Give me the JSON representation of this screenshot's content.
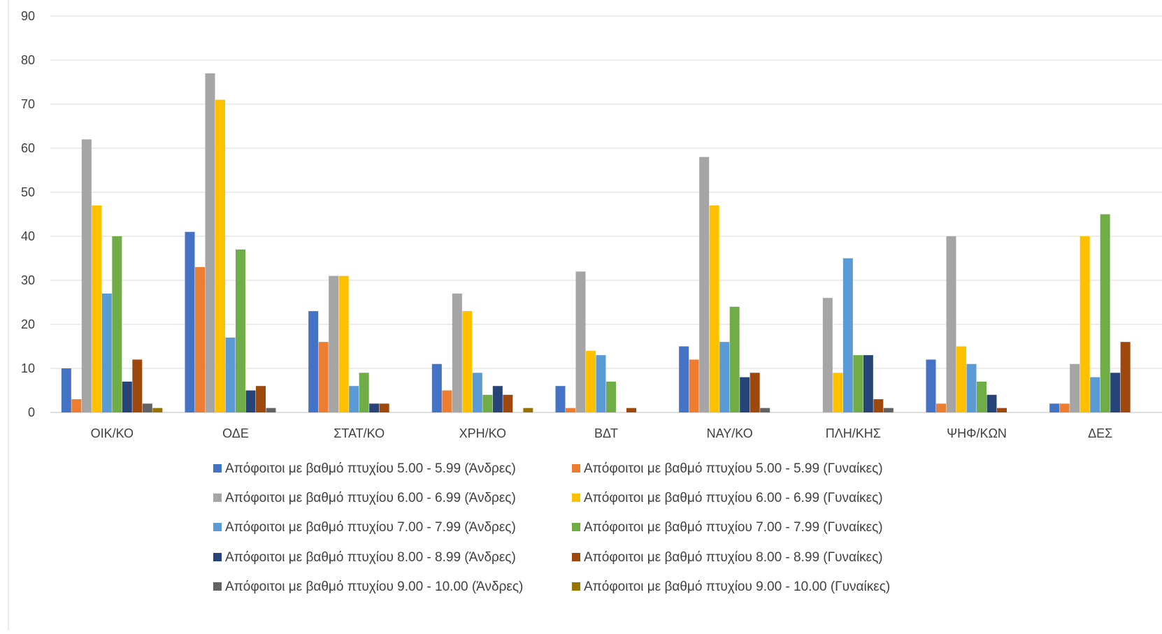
{
  "chart_data": {
    "type": "bar",
    "title": "",
    "xlabel": "",
    "ylabel": "",
    "ylim": [
      0,
      90
    ],
    "yticks": [
      0,
      10,
      20,
      30,
      40,
      50,
      60,
      70,
      80,
      90
    ],
    "grid": true,
    "legend_position": "bottom",
    "categories": [
      "ΟΙΚ/ΚΟ",
      "ΟΔΕ",
      "ΣΤΑΤ/ΚΟ",
      "ΧΡΗ/ΚΟ",
      "ΒΔΤ",
      "ΝΑΥ/ΚΟ",
      "ΠΛΗ/ΚΗΣ",
      "ΨΗΦ/ΚΩΝ",
      "ΔΕΣ"
    ],
    "series": [
      {
        "name": "Απόφοιτοι με βαθμό πτυχίου 5.00 - 5.99 (Άνδρες)",
        "color": "#4472C4",
        "values": [
          10,
          41,
          23,
          11,
          6,
          15,
          0,
          12,
          2
        ]
      },
      {
        "name": "Απόφοιτοι με βαθμό πτυχίου 5.00 - 5.99 (Γυναίκες)",
        "color": "#ED7D31",
        "values": [
          3,
          33,
          16,
          5,
          1,
          12,
          0,
          2,
          2
        ]
      },
      {
        "name": "Απόφοιτοι με βαθμό πτυχίου 6.00 - 6.99 (Άνδρες)",
        "color": "#A5A5A5",
        "values": [
          62,
          77,
          31,
          27,
          32,
          58,
          26,
          40,
          11
        ]
      },
      {
        "name": "Απόφοιτοι με βαθμό πτυχίου 6.00 - 6.99 (Γυναίκες)",
        "color": "#FFC000",
        "values": [
          47,
          71,
          31,
          23,
          14,
          47,
          9,
          15,
          40
        ]
      },
      {
        "name": "Απόφοιτοι με βαθμό πτυχίου 7.00 - 7.99 (Άνδρες)",
        "color": "#5B9BD5",
        "values": [
          27,
          17,
          6,
          9,
          13,
          16,
          35,
          11,
          8
        ]
      },
      {
        "name": "Απόφοιτοι με βαθμό πτυχίου 7.00 - 7.99 (Γυναίκες)",
        "color": "#70AD47",
        "values": [
          40,
          37,
          9,
          4,
          7,
          24,
          13,
          7,
          45
        ]
      },
      {
        "name": "Απόφοιτοι με βαθμό πτυχίου 8.00 - 8.99 (Άνδρες)",
        "color": "#264478",
        "values": [
          7,
          5,
          2,
          6,
          0,
          8,
          13,
          4,
          9
        ]
      },
      {
        "name": "Απόφοιτοι με βαθμό πτυχίου 8.00 - 8.99 (Γυναίκες)",
        "color": "#9E480E",
        "values": [
          12,
          6,
          2,
          4,
          1,
          9,
          3,
          1,
          16
        ]
      },
      {
        "name": "Απόφοιτοι με βαθμό πτυχίου 9.00 - 10.00 (Άνδρες)",
        "color": "#636363",
        "values": [
          2,
          1,
          0,
          0,
          0,
          1,
          1,
          0,
          0
        ]
      },
      {
        "name": "Απόφοιτοι με βαθμό πτυχίου 9.00 - 10.00 (Γυναίκες)",
        "color": "#997300",
        "values": [
          1,
          0,
          0,
          1,
          0,
          0,
          0,
          0,
          0
        ]
      }
    ]
  }
}
